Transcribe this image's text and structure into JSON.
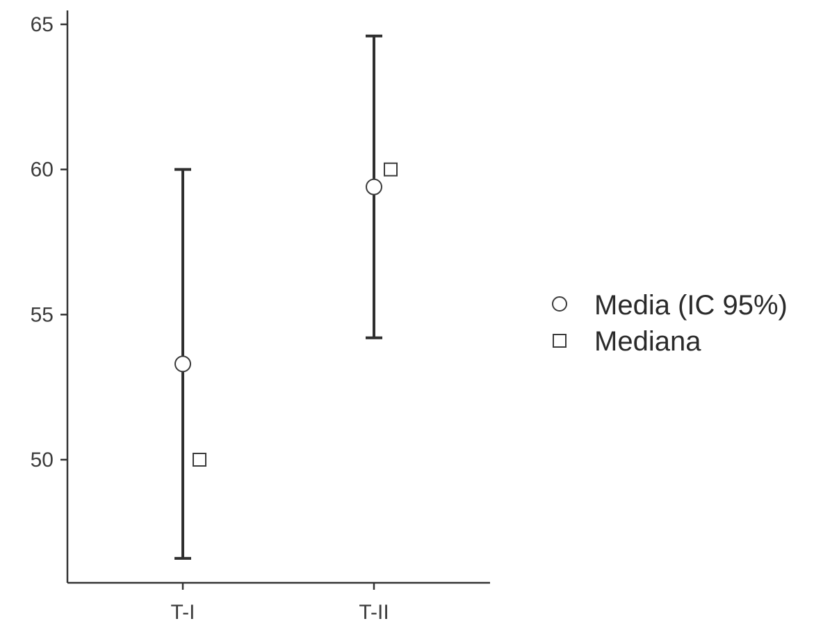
{
  "chart_data": {
    "type": "scatter",
    "title": "",
    "xlabel": "",
    "ylabel": "",
    "categories": [
      "T-I",
      "T-II"
    ],
    "ylim": [
      46,
      65.4
    ],
    "yticks": [
      50,
      55,
      60,
      65
    ],
    "series": [
      {
        "name": "Media (IC 95%)",
        "marker": "circle",
        "values": [
          53.3,
          59.4
        ],
        "ci_lower": [
          46.6,
          54.2
        ],
        "ci_upper": [
          60.0,
          64.6
        ]
      },
      {
        "name": "Mediana",
        "marker": "square",
        "values": [
          50,
          60
        ]
      }
    ],
    "legend_position": "right",
    "grid": false,
    "colors": {
      "line": "#2f2f2f",
      "marker_fill": "#ffffff"
    }
  }
}
